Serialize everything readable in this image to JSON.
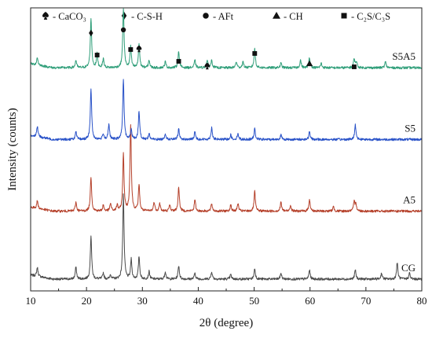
{
  "chart_data": {
    "type": "line",
    "title": "",
    "xlabel": "2θ (degree)",
    "ylabel": "Intensity (counts)",
    "xlim": [
      10,
      80
    ],
    "xticks": [
      10,
      20,
      30,
      40,
      50,
      60,
      70,
      80
    ],
    "y_ticks_shown": false,
    "grid": false,
    "legend": {
      "placement": "top",
      "entries": [
        {
          "symbol": "spade",
          "label": "- CaCO₃"
        },
        {
          "symbol": "diamond",
          "label": "- C-S-H"
        },
        {
          "symbol": "circle",
          "label": "- AFt"
        },
        {
          "symbol": "triangle",
          "label": "- CH"
        },
        {
          "symbol": "square",
          "label": "- C₂S/C₃S"
        }
      ]
    },
    "series": [
      {
        "name": "CG",
        "color": "#4a4a4a",
        "baseline": 0,
        "peaks": [
          [
            11.2,
            12
          ],
          [
            18.1,
            16
          ],
          [
            20.8,
            58
          ],
          [
            23.0,
            8
          ],
          [
            24.3,
            6
          ],
          [
            26.6,
            112
          ],
          [
            28.0,
            26
          ],
          [
            29.4,
            30
          ],
          [
            31.2,
            10
          ],
          [
            34.1,
            10
          ],
          [
            36.5,
            18
          ],
          [
            39.4,
            8
          ],
          [
            42.4,
            10
          ],
          [
            45.8,
            6
          ],
          [
            50.1,
            14
          ],
          [
            54.8,
            8
          ],
          [
            59.9,
            12
          ],
          [
            68.1,
            12
          ],
          [
            72.8,
            8
          ],
          [
            75.6,
            22
          ],
          [
            77.8,
            8
          ]
        ]
      },
      {
        "name": "A5",
        "color": "#b5402a",
        "baseline": 90,
        "peaks": [
          [
            11.2,
            10
          ],
          [
            18.1,
            12
          ],
          [
            20.8,
            46
          ],
          [
            23.0,
            8
          ],
          [
            24.3,
            10
          ],
          [
            25.5,
            8
          ],
          [
            26.6,
            75
          ],
          [
            27.9,
            115
          ],
          [
            29.4,
            35
          ],
          [
            32.1,
            12
          ],
          [
            33.1,
            10
          ],
          [
            34.9,
            8
          ],
          [
            36.5,
            32
          ],
          [
            39.4,
            15
          ],
          [
            42.4,
            10
          ],
          [
            45.8,
            8
          ],
          [
            47.1,
            10
          ],
          [
            50.1,
            26
          ],
          [
            54.8,
            12
          ],
          [
            56.5,
            8
          ],
          [
            59.9,
            16
          ],
          [
            64.2,
            6
          ],
          [
            67.9,
            12
          ],
          [
            68.2,
            10
          ]
        ]
      },
      {
        "name": "S5",
        "color": "#2952c8",
        "baseline": 185,
        "peaks": [
          [
            11.2,
            14
          ],
          [
            18.1,
            10
          ],
          [
            20.8,
            68
          ],
          [
            23.0,
            8
          ],
          [
            24.0,
            20
          ],
          [
            26.6,
            80
          ],
          [
            28.0,
            14
          ],
          [
            29.4,
            38
          ],
          [
            31.2,
            8
          ],
          [
            34.1,
            8
          ],
          [
            36.5,
            14
          ],
          [
            39.4,
            10
          ],
          [
            42.4,
            16
          ],
          [
            45.8,
            6
          ],
          [
            47.1,
            8
          ],
          [
            50.1,
            14
          ],
          [
            54.8,
            6
          ],
          [
            59.9,
            10
          ],
          [
            68.1,
            20
          ]
        ]
      },
      {
        "name": "S5A5",
        "color": "#2f9e79",
        "baseline": 280,
        "peaks": [
          [
            11.2,
            10
          ],
          [
            18.1,
            10
          ],
          [
            20.8,
            66
          ],
          [
            21.9,
            18
          ],
          [
            23.0,
            12
          ],
          [
            26.6,
            80
          ],
          [
            27.9,
            28
          ],
          [
            29.4,
            32
          ],
          [
            31.2,
            10
          ],
          [
            34.1,
            8
          ],
          [
            36.5,
            22
          ],
          [
            39.4,
            10
          ],
          [
            41.6,
            10
          ],
          [
            42.4,
            10
          ],
          [
            46.8,
            8
          ],
          [
            48.0,
            8
          ],
          [
            50.1,
            26
          ],
          [
            54.8,
            6
          ],
          [
            58.3,
            10
          ],
          [
            59.9,
            14
          ],
          [
            62.0,
            6
          ],
          [
            67.9,
            12
          ],
          [
            68.3,
            8
          ],
          [
            73.5,
            8
          ]
        ]
      }
    ]
  }
}
